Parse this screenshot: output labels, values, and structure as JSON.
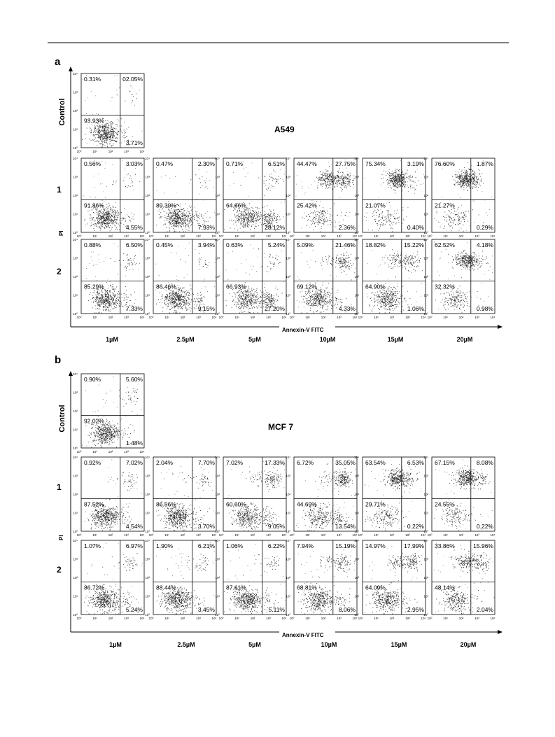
{
  "figure": {
    "panels": [
      {
        "letter": "a",
        "cell_line": "A549",
        "row_labels": [
          "Control",
          "1",
          "2"
        ],
        "y_axis_label": "PI",
        "x_axis_label": "Annexin-V FITC",
        "concentrations": [
          "1µM",
          "2.5µM",
          "5µM",
          "10µM",
          "15µM",
          "20µM"
        ],
        "control": {
          "ul": "0.31%",
          "ur": "02.05%",
          "ll": "93.93%",
          "lr": "3.71%"
        },
        "rows": [
          [
            {
              "ul": "0.56%",
              "ur": "3.03%",
              "ll": "91.86%",
              "lr": "4.55%"
            },
            {
              "ul": "0.47%",
              "ur": "2.30%",
              "ll": "89.30%",
              "lr": "7.93%"
            },
            {
              "ul": "0.71%",
              "ur": "6.51%",
              "ll": "64.66%",
              "lr": "28.12%"
            },
            {
              "ul": "44.47%",
              "ur": "27.75%",
              "ll": "25.42%",
              "lr": "2.36%"
            },
            {
              "ul": "75.34%",
              "ur": "3.19%",
              "ll": "21.07%",
              "lr": "0.40%"
            },
            {
              "ul": "76.60%",
              "ur": "1.87%",
              "ll": "21.27%",
              "lr": "0.29%"
            }
          ],
          [
            {
              "ul": "0.88%",
              "ur": "6.50%",
              "ll": "85.29%",
              "lr": "7.33%"
            },
            {
              "ul": "0.45%",
              "ur": "3.94%",
              "ll": "86.46%",
              "lr": "9.15%"
            },
            {
              "ul": "0.63%",
              "ur": "5.24%",
              "ll": "66.93%",
              "lr": "27.20%"
            },
            {
              "ul": "5.09%",
              "ur": "21.46%",
              "ll": "69.12%",
              "lr": "4.33%"
            },
            {
              "ul": "18.82%",
              "ur": "15.22%",
              "ll": "64.90%",
              "lr": "1.06%"
            },
            {
              "ul": "62.52%",
              "ur": "4.18%",
              "ll": "32.32%",
              "lr": "0.98%"
            }
          ]
        ]
      },
      {
        "letter": "b",
        "cell_line": "MCF 7",
        "row_labels": [
          "Control",
          "1",
          "2"
        ],
        "y_axis_label": "PI",
        "x_axis_label": "Annexin-V FITC",
        "concentrations": [
          "1µM",
          "2.5µM",
          "5µM",
          "10µM",
          "15µM",
          "20µM"
        ],
        "control": {
          "ul": "0.90%",
          "ur": "5.60%",
          "ll": "92.02%",
          "lr": "1.48%"
        },
        "rows": [
          [
            {
              "ul": "0.92%",
              "ur": "7.02%",
              "ll": "87.52%",
              "lr": "4.54%"
            },
            {
              "ul": "2.04%",
              "ur": "7.70%",
              "ll": "86.56%",
              "lr": "3.70%"
            },
            {
              "ul": "7.02%",
              "ur": "17.33%",
              "ll": "60.60%",
              "lr": "9.05%"
            },
            {
              "ul": "6.72%",
              "ur": "35.05%",
              "ll": "44.69%",
              "lr": "13.54%"
            },
            {
              "ul": "63.54%",
              "ur": "6.53%",
              "ll": "29.71%",
              "lr": "0.22%"
            },
            {
              "ul": "67.15%",
              "ur": "8.08%",
              "ll": "24.55%",
              "lr": "0.22%"
            }
          ],
          [
            {
              "ul": "1.07%",
              "ur": "6.97%",
              "ll": "86.72%",
              "lr": "5.24%"
            },
            {
              "ul": "1.90%",
              "ur": "6.21%",
              "ll": "88.44%",
              "lr": "3.45%"
            },
            {
              "ul": "1.06%",
              "ur": "6.22%",
              "ll": "87.61%",
              "lr": "5.11%"
            },
            {
              "ul": "7.94%",
              "ur": "15.19%",
              "ll": "68.81%",
              "lr": "8.06%"
            },
            {
              "ul": "14.97%",
              "ur": "17.99%",
              "ll": "64.09%",
              "lr": "2.95%"
            },
            {
              "ul": "33.86%",
              "ur": "15.96%",
              "ll": "48.14%",
              "lr": "2.04%"
            }
          ]
        ]
      }
    ],
    "tick_labels": [
      "10⁰",
      "10¹",
      "10²",
      "10³",
      "10⁴"
    ]
  }
}
